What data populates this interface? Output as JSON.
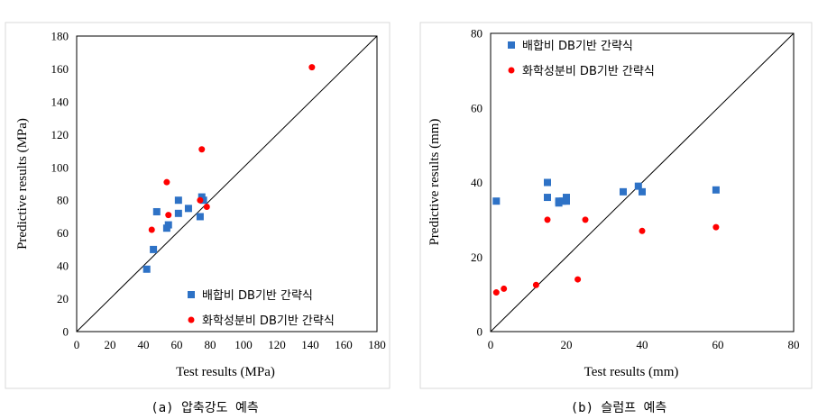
{
  "chart_data": [
    {
      "type": "scatter",
      "caption": "(a) 압축강도 예측",
      "xlabel": "Test results (MPa)",
      "ylabel": "Predictive results (MPa)",
      "xlim": [
        0,
        180
      ],
      "ylim": [
        0,
        180
      ],
      "xticks": [
        "0",
        "20",
        "40",
        "60",
        "80",
        "100",
        "120",
        "140",
        "160",
        "180"
      ],
      "yticks": [
        "0",
        "20",
        "40",
        "60",
        "80",
        "100",
        "120",
        "140",
        "160",
        "180"
      ],
      "grid": false,
      "legend_position": "bottom-right",
      "reference_line": [
        [
          0,
          0
        ],
        [
          180,
          180
        ]
      ],
      "series": [
        {
          "name": "배합비 DB기반 간략식",
          "marker": "square",
          "color": "#2e72c6",
          "points": [
            [
              42,
              38
            ],
            [
              46,
              50
            ],
            [
              48,
              73
            ],
            [
              54,
              63
            ],
            [
              55,
              65
            ],
            [
              61,
              80
            ],
            [
              61,
              72
            ],
            [
              67,
              75
            ],
            [
              74,
              70
            ],
            [
              75,
              82
            ],
            [
              76,
              80
            ]
          ]
        },
        {
          "name": "화학성분비 DB기반 간략식",
          "marker": "circle",
          "color": "#ff0000",
          "points": [
            [
              45,
              62
            ],
            [
              54,
              91
            ],
            [
              55,
              71
            ],
            [
              74,
              80
            ],
            [
              75,
              111
            ],
            [
              78,
              76
            ],
            [
              141,
              161
            ]
          ]
        }
      ]
    },
    {
      "type": "scatter",
      "caption": "(b) 슬럼프 예측",
      "xlabel": "Test results (mm)",
      "ylabel": "Predictive results (mm)",
      "xlim": [
        0,
        80
      ],
      "ylim": [
        0,
        80
      ],
      "xticks": [
        "0",
        "20",
        "40",
        "60",
        "80"
      ],
      "yticks": [
        "0",
        "20",
        "40",
        "60",
        "80"
      ],
      "grid": false,
      "legend_position": "top-left",
      "reference_line": [
        [
          0,
          0
        ],
        [
          80,
          80
        ]
      ],
      "series": [
        {
          "name": "배합비 DB기반 간략식",
          "marker": "square",
          "color": "#2e72c6",
          "points": [
            [
              1.5,
              35
            ],
            [
              15,
              40
            ],
            [
              15,
              36
            ],
            [
              18,
              35
            ],
            [
              18,
              34.5
            ],
            [
              19,
              35
            ],
            [
              20,
              36
            ],
            [
              20,
              35
            ],
            [
              35,
              37.5
            ],
            [
              39,
              39
            ],
            [
              40,
              37.5
            ],
            [
              59.5,
              38
            ]
          ]
        },
        {
          "name": "화학성분비 DB기반 간략식",
          "marker": "circle",
          "color": "#ff0000",
          "points": [
            [
              1.5,
              10.5
            ],
            [
              3.5,
              11.5
            ],
            [
              12,
              12.5
            ],
            [
              15,
              30
            ],
            [
              23,
              14
            ],
            [
              25,
              30
            ],
            [
              40,
              27
            ],
            [
              59.5,
              28
            ]
          ]
        }
      ]
    }
  ]
}
